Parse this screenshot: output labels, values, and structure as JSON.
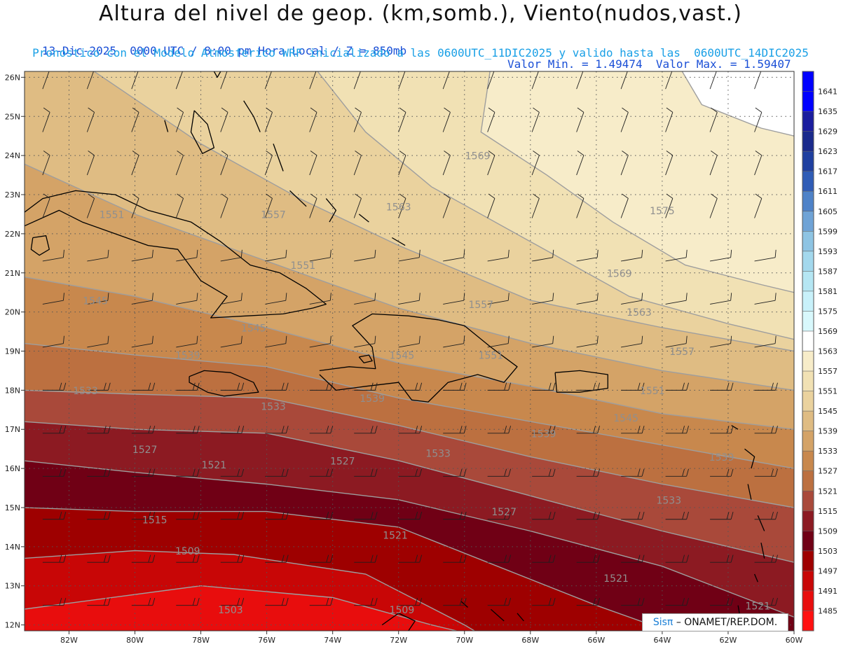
{
  "header": {
    "title": "Altura del nivel de geop. (km,somb.), Viento(nudos,vast.)",
    "date_time": "13-Dic-2025  0000 UTC / 8:00 pm Hora Local / Z = 850mb",
    "min_max": "Valor Min. = 1.49474  Valor Max. = 1.59407",
    "model_info": "Pronostico con el Modelo Atmosferico WRF inicializado a las 0600UTC_11DIC2025 y valido hasta las  0600UTC_14DIC2025"
  },
  "map": {
    "lat_labels": [
      "26N",
      "25N",
      "24N",
      "23N",
      "22N",
      "21N",
      "20N",
      "19N",
      "18N",
      "17N",
      "16N",
      "15N",
      "14N",
      "13N",
      "12N"
    ],
    "lon_labels": [
      "82W",
      "80W",
      "78W",
      "76W",
      "74W",
      "72W",
      "70W",
      "68W",
      "66W",
      "64W",
      "62W",
      "60W"
    ],
    "contour_labels": [
      {
        "text": "1503",
        "lon": -77.1,
        "lat": 12.3
      },
      {
        "text": "1509",
        "lon": -71.9,
        "lat": 12.3
      },
      {
        "text": "1509",
        "lon": -78.4,
        "lat": 13.8
      },
      {
        "text": "1515",
        "lon": -79.4,
        "lat": 14.6
      },
      {
        "text": "1521",
        "lon": -72.1,
        "lat": 14.2
      },
      {
        "text": "1521",
        "lon": -77.6,
        "lat": 16.0
      },
      {
        "text": "1521",
        "lon": -65.4,
        "lat": 13.1
      },
      {
        "text": "1521",
        "lon": -61.1,
        "lat": 12.4
      },
      {
        "text": "1527",
        "lon": -79.7,
        "lat": 16.4
      },
      {
        "text": "1527",
        "lon": -73.7,
        "lat": 16.1
      },
      {
        "text": "1527",
        "lon": -68.8,
        "lat": 14.8
      },
      {
        "text": "1533",
        "lon": -81.5,
        "lat": 17.9
      },
      {
        "text": "1533",
        "lon": -75.8,
        "lat": 17.5
      },
      {
        "text": "1533",
        "lon": -70.8,
        "lat": 16.3
      },
      {
        "text": "1533",
        "lon": -63.8,
        "lat": 15.1
      },
      {
        "text": "1539",
        "lon": -78.4,
        "lat": 18.8
      },
      {
        "text": "1539",
        "lon": -72.8,
        "lat": 17.7
      },
      {
        "text": "1539",
        "lon": -67.6,
        "lat": 16.8
      },
      {
        "text": "1539",
        "lon": -62.2,
        "lat": 16.2
      },
      {
        "text": "1545",
        "lon": -81.2,
        "lat": 20.2
      },
      {
        "text": "1545",
        "lon": -76.4,
        "lat": 19.5
      },
      {
        "text": "1545",
        "lon": -71.9,
        "lat": 18.8
      },
      {
        "text": "1545",
        "lon": -65.1,
        "lat": 17.2
      },
      {
        "text": "1551",
        "lon": -80.7,
        "lat": 22.4
      },
      {
        "text": "1551",
        "lon": -74.9,
        "lat": 21.1
      },
      {
        "text": "1551",
        "lon": -69.2,
        "lat": 18.8
      },
      {
        "text": "1551",
        "lon": -64.3,
        "lat": 17.9
      },
      {
        "text": "1557",
        "lon": -75.8,
        "lat": 22.4
      },
      {
        "text": "1557",
        "lon": -69.5,
        "lat": 20.1
      },
      {
        "text": "1557",
        "lon": -63.4,
        "lat": 18.9
      },
      {
        "text": "1563",
        "lon": -72.0,
        "lat": 22.6
      },
      {
        "text": "1563",
        "lon": -64.7,
        "lat": 19.9
      },
      {
        "text": "1569",
        "lon": -69.6,
        "lat": 23.9
      },
      {
        "text": "1569",
        "lon": -65.3,
        "lat": 20.9
      },
      {
        "text": "1575",
        "lon": -64.0,
        "lat": 22.5
      }
    ],
    "colors": {
      "ocean_light": "#ffffff",
      "grid": "#555555",
      "contour": "#9e9e9e",
      "contour_label": "#8f8f8f",
      "coast": "#000000",
      "barb": "#1e1e1e"
    }
  },
  "colorbar": {
    "levels": [
      "1485",
      "1491",
      "1497",
      "1503",
      "1509",
      "1515",
      "1521",
      "1527",
      "1533",
      "1539",
      "1545",
      "1551",
      "1557",
      "1563",
      "1569",
      "1575",
      "1581",
      "1587",
      "1593",
      "1599",
      "1605",
      "1611",
      "1617",
      "1623",
      "1629",
      "1635",
      "1641"
    ],
    "colors": [
      "#ff1111",
      "#e80d0d",
      "#c80606",
      "#9e0000",
      "#700015",
      "#8c1a22",
      "#a9493a",
      "#bc7040",
      "#c8884d",
      "#d4a367",
      "#dfbc83",
      "#ead29e",
      "#f1e1b4",
      "#f7ecc9",
      "#ffffff",
      "#d8f8fc",
      "#c8f1fa",
      "#b5e6f3",
      "#a3d8ed",
      "#8ec4e3",
      "#6fa3d6",
      "#4e82c8",
      "#2f5cb6",
      "#1f3fa0",
      "#1a2a8c",
      "#1a1d9e",
      "#0000ff"
    ]
  },
  "credit": {
    "logo": "Sisπ",
    "text": "– ONAMET/REP.DOM."
  }
}
